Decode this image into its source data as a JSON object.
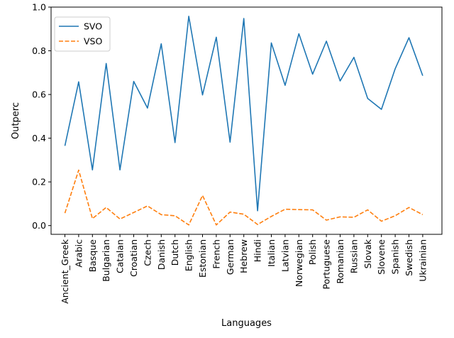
{
  "chart_data": {
    "type": "line",
    "title": "",
    "xlabel": "Languages",
    "ylabel": "Outperc",
    "ylim": [
      -0.04,
      1.0
    ],
    "yticks": [
      0.0,
      0.2,
      0.4,
      0.6,
      0.8,
      1.0
    ],
    "ytick_labels": [
      "0.0",
      "0.2",
      "0.4",
      "0.6",
      "0.8",
      "1.0"
    ],
    "grid": false,
    "legend_placement": "top-left",
    "categories": [
      "Ancient_Greek",
      "Arabic",
      "Basque",
      "Bulgarian",
      "Catalan",
      "Croatian",
      "Czech",
      "Danish",
      "Dutch",
      "English",
      "Estonian",
      "French",
      "German",
      "Hebrew",
      "Hindi",
      "Italian",
      "Latvian",
      "Norwegian",
      "Polish",
      "Portuguese",
      "Romanian",
      "Russian",
      "Slovak",
      "Slovene",
      "Spanish",
      "Swedish",
      "Ukrainian"
    ],
    "series": [
      {
        "name": "SVO",
        "color": "#1f77b4",
        "style": "solid",
        "values": [
          0.365,
          0.658,
          0.255,
          0.742,
          0.255,
          0.66,
          0.538,
          0.832,
          0.38,
          0.958,
          0.598,
          0.862,
          0.382,
          0.948,
          0.068,
          0.836,
          0.642,
          0.878,
          0.693,
          0.844,
          0.662,
          0.77,
          0.582,
          0.532,
          0.718,
          0.86,
          0.686
        ]
      },
      {
        "name": "VSO",
        "color": "#ff7f0e",
        "style": "dashed",
        "values": [
          0.057,
          0.254,
          0.032,
          0.083,
          0.03,
          0.06,
          0.09,
          0.05,
          0.045,
          0.003,
          0.138,
          0.003,
          0.062,
          0.052,
          0.005,
          0.042,
          0.075,
          0.073,
          0.072,
          0.025,
          0.04,
          0.038,
          0.072,
          0.02,
          0.045,
          0.083,
          0.05
        ]
      }
    ]
  }
}
